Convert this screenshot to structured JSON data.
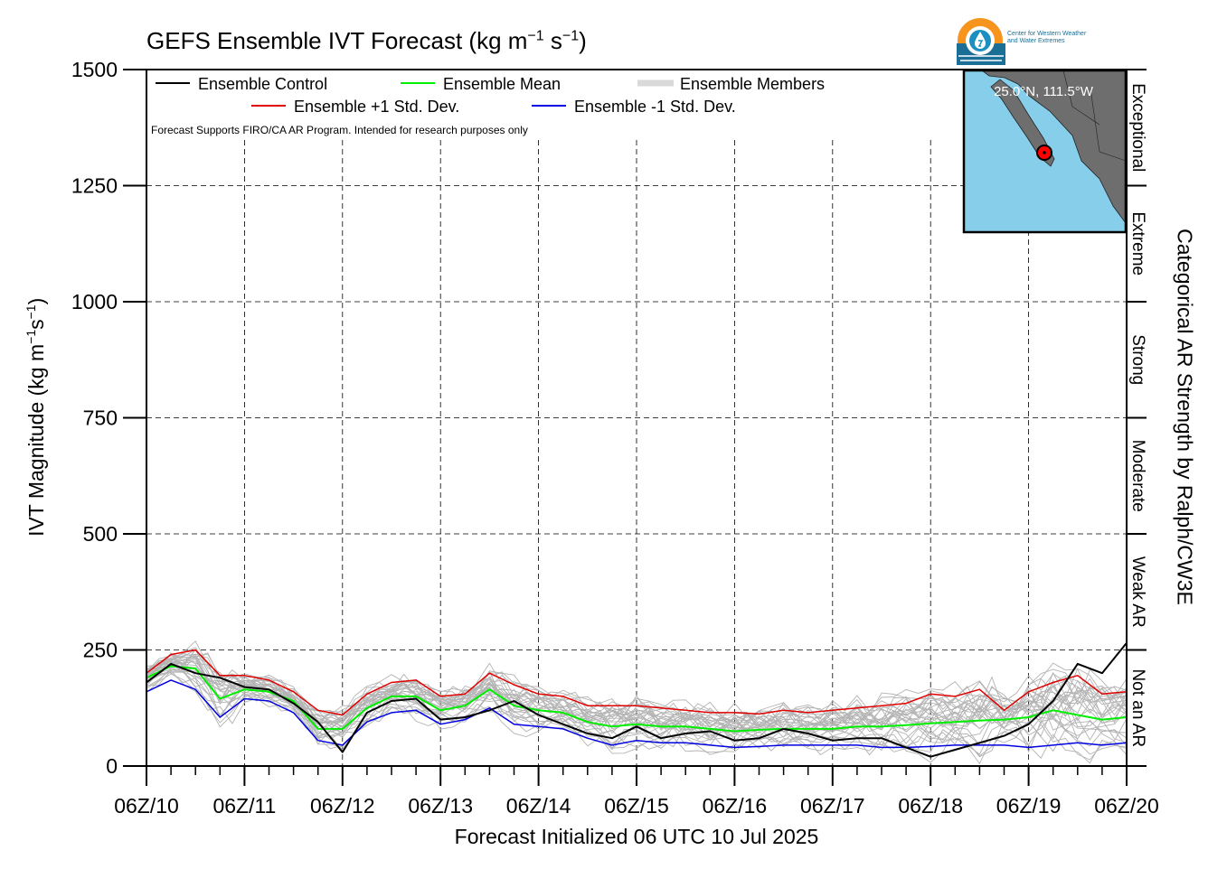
{
  "chart_data": {
    "type": "line",
    "title_main": "GEFS Ensemble IVT Forecast (kg m",
    "title_sup1": "−1",
    "title_mid": " s",
    "title_sup2": "−1",
    "title_end": ")",
    "ylabel_main": "IVT Magnitude (kg m",
    "ylabel_sup1": "−1",
    "ylabel_mid": "s",
    "ylabel_sup2": "−1",
    "ylabel_end": ")",
    "right_label": "Categorical AR Strength by Ralph/CW3E",
    "xlabel": "Forecast Initialized 06 UTC 10 Jul 2025",
    "disclaimer": "Forecast Supports FIRO/CA AR Program. Intended for research purposes only",
    "xlim": [
      0,
      240
    ],
    "ylim": [
      0,
      1500
    ],
    "yticks": [
      0,
      250,
      500,
      750,
      1000,
      1250,
      1500
    ],
    "xticks": [
      0,
      24,
      48,
      72,
      96,
      120,
      144,
      168,
      192,
      216,
      240
    ],
    "xtick_labels": [
      "06Z/10",
      "06Z/11",
      "06Z/12",
      "06Z/13",
      "06Z/14",
      "06Z/15",
      "06Z/16",
      "06Z/17",
      "06Z/18",
      "06Z/19",
      "06Z/20"
    ],
    "categories": [
      {
        "label": "Not an AR",
        "range": [
          0,
          250
        ]
      },
      {
        "label": "Weak AR",
        "range": [
          250,
          500
        ]
      },
      {
        "label": "Moderate",
        "range": [
          500,
          750
        ]
      },
      {
        "label": "Strong",
        "range": [
          750,
          1000
        ]
      },
      {
        "label": "Extreme",
        "range": [
          1000,
          1250
        ]
      },
      {
        "label": "Exceptional",
        "range": [
          1250,
          1500
        ]
      }
    ],
    "grid": true,
    "legend": [
      {
        "label": "Ensemble Control",
        "color": "#000000"
      },
      {
        "label": "Ensemble Mean",
        "color": "#00ee00"
      },
      {
        "label": "Ensemble Members",
        "color": "#b3b3b3"
      },
      {
        "label": "Ensemble +1 Std. Dev.",
        "color": "#e00000"
      },
      {
        "label": "Ensemble -1 Std. Dev.",
        "color": "#0000e0"
      }
    ],
    "x": [
      0,
      6,
      12,
      18,
      24,
      30,
      36,
      42,
      48,
      54,
      60,
      66,
      72,
      78,
      84,
      90,
      96,
      102,
      108,
      114,
      120,
      126,
      132,
      138,
      144,
      150,
      156,
      162,
      168,
      174,
      180,
      186,
      192,
      198,
      204,
      210,
      216,
      222,
      228,
      234,
      240
    ],
    "series": [
      {
        "name": "Ensemble Control",
        "color": "#000000",
        "width": 2,
        "values": [
          180,
          220,
          200,
          190,
          170,
          165,
          135,
          95,
          30,
          115,
          140,
          145,
          100,
          105,
          120,
          140,
          110,
          90,
          70,
          60,
          85,
          60,
          70,
          75,
          55,
          60,
          80,
          70,
          55,
          60,
          60,
          40,
          20,
          35,
          50,
          65,
          90,
          140,
          220,
          200,
          265
        ]
      },
      {
        "name": "Ensemble Mean",
        "color": "#00ee00",
        "width": 2,
        "values": [
          190,
          215,
          210,
          145,
          165,
          160,
          140,
          80,
          80,
          125,
          150,
          150,
          120,
          130,
          165,
          130,
          120,
          115,
          95,
          85,
          90,
          85,
          85,
          80,
          75,
          78,
          80,
          80,
          80,
          85,
          85,
          88,
          92,
          95,
          98,
          100,
          105,
          120,
          110,
          100,
          105
        ]
      },
      {
        "name": "Ensemble +1 Std. Dev.",
        "color": "#e00000",
        "width": 1.5,
        "values": [
          200,
          240,
          250,
          195,
          195,
          185,
          160,
          120,
          110,
          155,
          180,
          185,
          150,
          155,
          200,
          175,
          155,
          150,
          130,
          130,
          130,
          125,
          120,
          115,
          115,
          112,
          120,
          115,
          120,
          125,
          130,
          135,
          155,
          150,
          165,
          120,
          160,
          180,
          195,
          155,
          160
        ]
      },
      {
        "name": "Ensemble -1 Std. Dev.",
        "color": "#0000e0",
        "width": 1.5,
        "values": [
          160,
          185,
          165,
          105,
          145,
          140,
          115,
          55,
          45,
          95,
          115,
          120,
          90,
          100,
          125,
          90,
          85,
          80,
          60,
          45,
          55,
          50,
          50,
          45,
          40,
          42,
          45,
          45,
          45,
          45,
          40,
          40,
          42,
          45,
          45,
          45,
          40,
          45,
          50,
          45,
          50
        ]
      }
    ],
    "members_spread": {
      "name": "Ensemble Members",
      "count": 30
    },
    "inset": {
      "label": "25.0°N, 111.5°W"
    },
    "logo_text_line1": "Center for Western Weather",
    "logo_text_line2": "and Water Extremes"
  }
}
